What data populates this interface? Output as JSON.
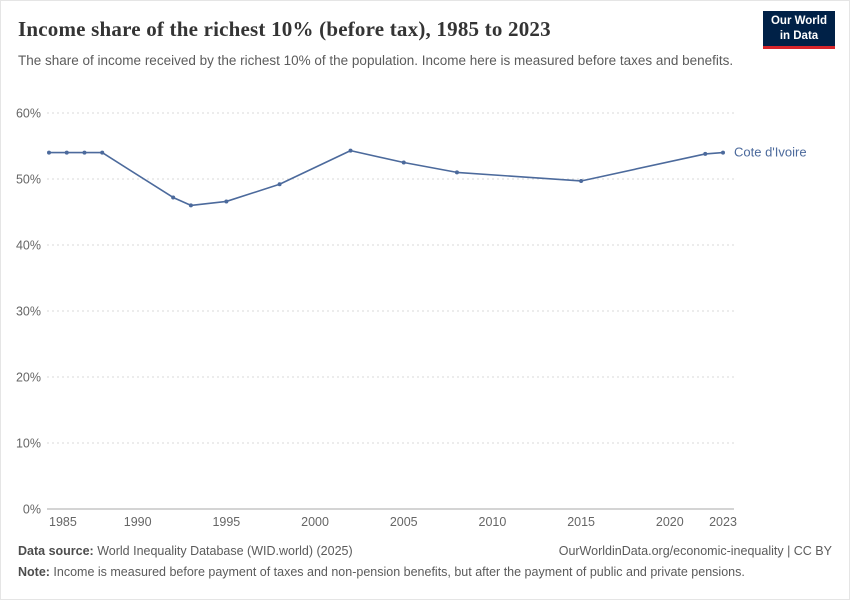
{
  "header": {
    "title": "Income share of the richest 10% (before tax), 1985 to 2023",
    "subtitle": "The share of income received by the richest 10% of the population. Income here is measured before taxes and benefits.",
    "logo": {
      "line1": "Our World",
      "line2": "in Data"
    }
  },
  "chart_data": {
    "type": "line",
    "title": "Income share of the richest 10% (before tax), 1985 to 2023",
    "xlabel": "",
    "ylabel": "",
    "xlim": [
      1985,
      2023
    ],
    "ylim": [
      0,
      60
    ],
    "x_ticks": [
      1985,
      1990,
      1995,
      2000,
      2005,
      2010,
      2015,
      2020,
      2023
    ],
    "y_ticks": [
      0,
      10,
      20,
      30,
      40,
      50,
      60
    ],
    "y_tick_suffix": "%",
    "grid": "horizontal-dashed",
    "legend_position": "end-of-line-label",
    "colors": {
      "line": "#4C6A9C",
      "grid": "#dadada",
      "axis": "#a8a8a8",
      "tick_text": "#666666"
    },
    "series": [
      {
        "name": "Cote d'Ivoire",
        "color": "#4C6A9C",
        "points": [
          [
            1985,
            54.0
          ],
          [
            1986,
            54.0
          ],
          [
            1987,
            54.0
          ],
          [
            1988,
            54.0
          ],
          [
            1992,
            47.2
          ],
          [
            1993,
            46.0
          ],
          [
            1995,
            46.6
          ],
          [
            1998,
            49.2
          ],
          [
            2002,
            54.3
          ],
          [
            2005,
            52.5
          ],
          [
            2008,
            51.0
          ],
          [
            2015,
            49.7
          ],
          [
            2022,
            53.8
          ],
          [
            2023,
            54.0
          ]
        ]
      }
    ]
  },
  "footer": {
    "source_label": "Data source:",
    "source_text": " World Inequality Database (WID.world) (2025)",
    "rights": "OurWorldinData.org/economic-inequality | CC BY",
    "note_label": "Note:",
    "note_text": " Income is measured before payment of taxes and non-pension benefits, but after the payment of public and private pensions."
  }
}
